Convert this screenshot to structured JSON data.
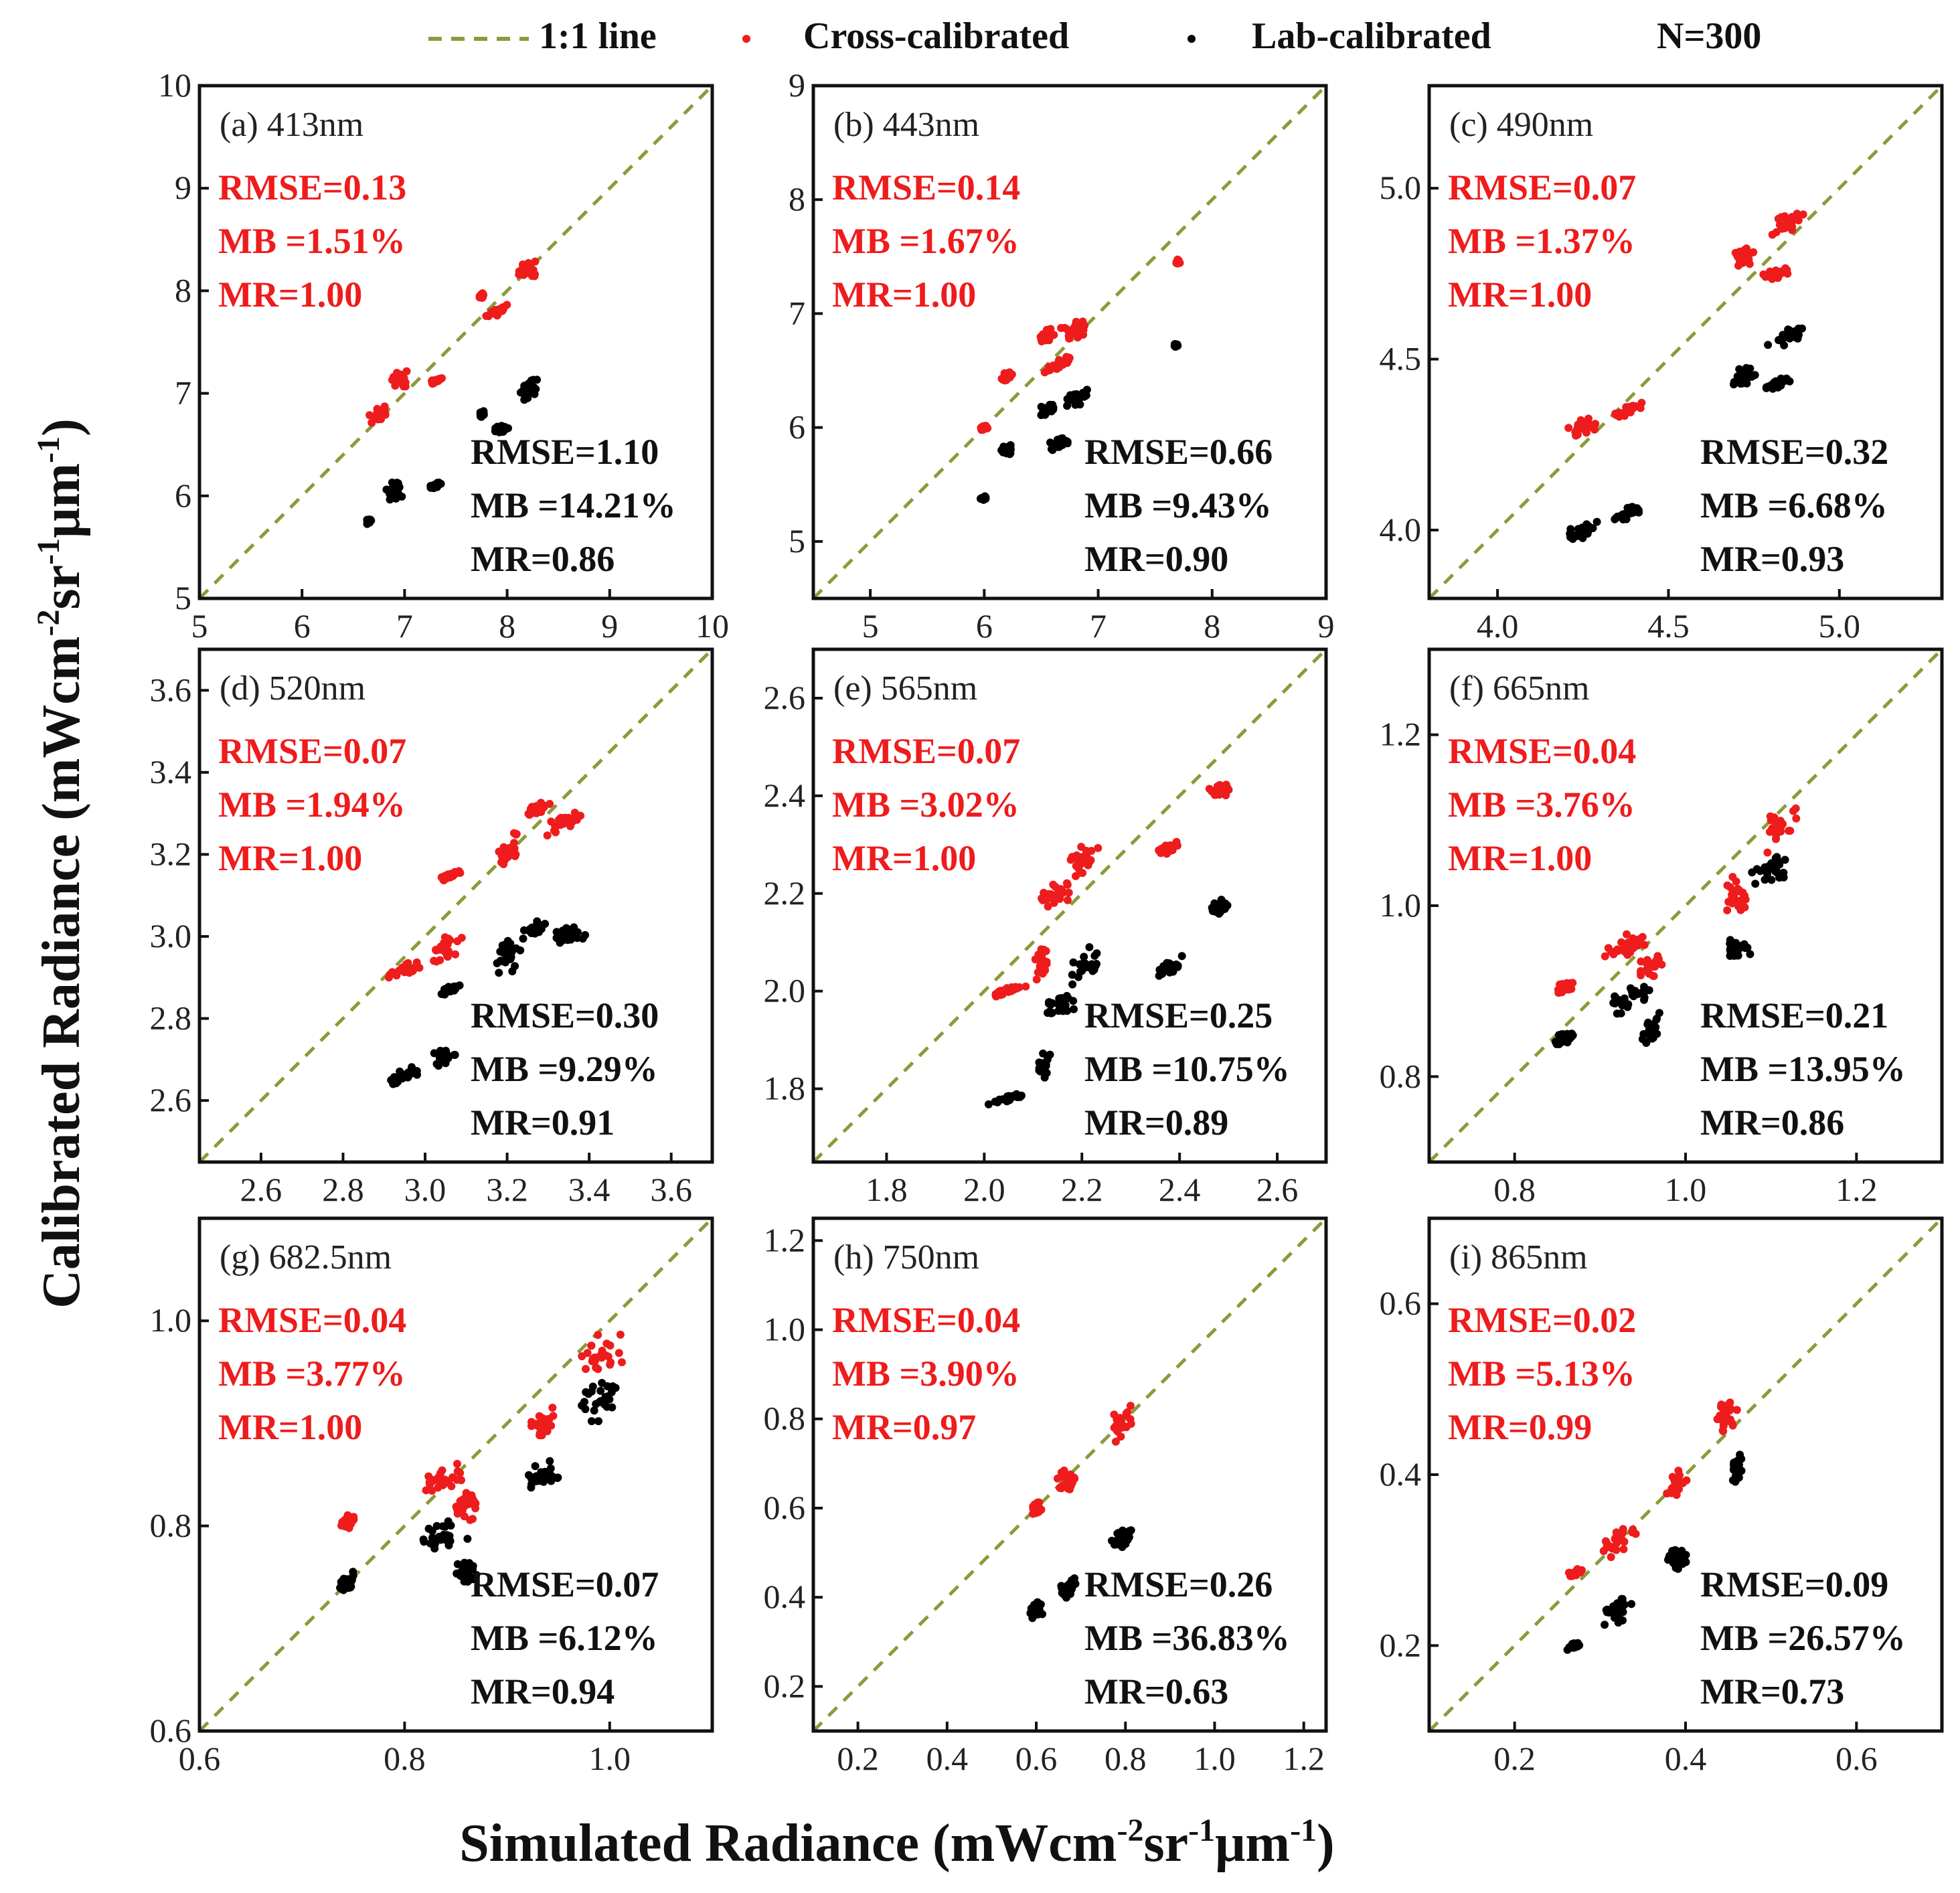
{
  "legend": {
    "line_label": "1:1 line",
    "cross_label": "Cross-calibrated",
    "lab_label": "Lab-calibrated",
    "n_label": "N=300"
  },
  "axis_titles": {
    "x_prefix": "Simulated Radiance (mWcm",
    "x_e1": "-2",
    "x_mid": "sr",
    "x_e2": "-1",
    "x_mu": "μm",
    "x_e3": "-1",
    "x_suffix": ")",
    "y_prefix": "Calibrated Radiance (mWcm",
    "y_e1": "-2",
    "y_mid": "sr",
    "y_e2": "-1",
    "y_mu": "μm",
    "y_e3": "-1",
    "y_suffix": ")"
  },
  "colors": {
    "cross": "#ee1c1c",
    "lab": "#000000",
    "line": "#8c9a3a",
    "frame": "#111111"
  },
  "chart_data": [
    {
      "type": "scatter",
      "title": "(a) 413nm",
      "xlim": [
        5,
        10
      ],
      "ylim": [
        5,
        10
      ],
      "xticks": [
        5,
        6,
        7,
        8,
        9,
        10
      ],
      "yticks": [
        5,
        6,
        7,
        8,
        9,
        10
      ],
      "xtick_labels": [
        "5",
        "6",
        "7",
        "8",
        "9",
        "10"
      ],
      "ytick_labels": [
        "5",
        "6",
        "7",
        "8",
        "9",
        "10"
      ],
      "cross_stats": [
        "RMSE=0.13",
        "MB =1.51%",
        "MR=1.00"
      ],
      "lab_stats": [
        "RMSE=1.10",
        "MB =14.21%",
        "MR=0.86"
      ],
      "cross_clusters": [
        [
          6.75,
          6.8,
          0.12,
          0.1
        ],
        [
          6.95,
          7.15,
          0.12,
          0.12
        ],
        [
          7.3,
          7.12,
          0.08,
          0.03
        ],
        [
          7.9,
          7.8,
          0.12,
          0.06
        ],
        [
          8.2,
          8.2,
          0.12,
          0.15
        ],
        [
          7.75,
          7.95,
          0.03,
          0.03
        ]
      ],
      "lab_clusters": [
        [
          6.65,
          5.75,
          0.05,
          0.03
        ],
        [
          6.9,
          6.05,
          0.12,
          0.12
        ],
        [
          7.3,
          6.1,
          0.06,
          0.03
        ],
        [
          7.95,
          6.65,
          0.1,
          0.05
        ],
        [
          8.2,
          7.05,
          0.12,
          0.12
        ],
        [
          7.75,
          6.8,
          0.03,
          0.03
        ]
      ]
    },
    {
      "type": "scatter",
      "title": "(b) 443nm",
      "xlim": [
        4.5,
        9
      ],
      "ylim": [
        4.5,
        9
      ],
      "xticks": [
        5,
        6,
        7,
        8,
        9
      ],
      "yticks": [
        5,
        6,
        7,
        8,
        9
      ],
      "xtick_labels": [
        "5",
        "6",
        "7",
        "8",
        "9"
      ],
      "ytick_labels": [
        "5",
        "6",
        "7",
        "8",
        "9"
      ],
      "cross_stats": [
        "RMSE=0.14",
        "MB =1.67%",
        "MR=1.00"
      ],
      "lab_stats": [
        "RMSE=0.66",
        "MB =9.43%",
        "MR=0.90"
      ],
      "cross_clusters": [
        [
          6.0,
          6.0,
          0.05,
          0.03
        ],
        [
          6.2,
          6.45,
          0.07,
          0.05
        ],
        [
          6.55,
          6.8,
          0.1,
          0.08
        ],
        [
          6.8,
          6.85,
          0.15,
          0.12
        ],
        [
          6.65,
          6.55,
          0.15,
          0.06
        ],
        [
          7.7,
          7.45,
          0.02,
          0.03
        ]
      ],
      "lab_clusters": [
        [
          6.0,
          5.38,
          0.04,
          0.02
        ],
        [
          6.2,
          5.8,
          0.06,
          0.05
        ],
        [
          6.55,
          6.15,
          0.1,
          0.08
        ],
        [
          6.8,
          6.25,
          0.15,
          0.1
        ],
        [
          6.65,
          5.85,
          0.15,
          0.06
        ],
        [
          7.68,
          6.72,
          0.02,
          0.02
        ]
      ]
    },
    {
      "type": "scatter",
      "title": "(c) 490nm",
      "xlim": [
        3.8,
        5.3
      ],
      "ylim": [
        3.8,
        5.3
      ],
      "xticks": [
        4.0,
        4.5,
        5.0
      ],
      "yticks": [
        4.0,
        4.5,
        5.0
      ],
      "xtick_labels": [
        "4.0",
        "4.5",
        "5.0"
      ],
      "ytick_labels": [
        "4.0",
        "4.5",
        "5.0"
      ],
      "cross_stats": [
        "RMSE=0.07",
        "MB =1.37%",
        "MR=1.00"
      ],
      "lab_stats": [
        "RMSE=0.32",
        "MB =6.68%",
        "MR=0.93"
      ],
      "cross_clusters": [
        [
          4.25,
          4.3,
          0.06,
          0.04
        ],
        [
          4.38,
          4.35,
          0.05,
          0.02
        ],
        [
          4.72,
          4.8,
          0.04,
          0.05
        ],
        [
          4.82,
          4.75,
          0.05,
          0.02
        ],
        [
          4.85,
          4.9,
          0.07,
          0.04
        ]
      ],
      "lab_clusters": [
        [
          4.25,
          4.0,
          0.06,
          0.03
        ],
        [
          4.38,
          4.05,
          0.05,
          0.02
        ],
        [
          4.72,
          4.45,
          0.04,
          0.04
        ],
        [
          4.82,
          4.43,
          0.05,
          0.02
        ],
        [
          4.85,
          4.57,
          0.07,
          0.03
        ]
      ]
    },
    {
      "type": "scatter",
      "title": "(d) 520nm",
      "xlim": [
        2.45,
        3.7
      ],
      "ylim": [
        2.45,
        3.7
      ],
      "xticks": [
        2.6,
        2.8,
        3.0,
        3.2,
        3.4,
        3.6
      ],
      "yticks": [
        2.6,
        2.8,
        3.0,
        3.2,
        3.4,
        3.6
      ],
      "xtick_labels": [
        "2.6",
        "2.8",
        "3.0",
        "3.2",
        "3.4",
        "3.6"
      ],
      "ytick_labels": [
        "2.6",
        "2.8",
        "3.0",
        "3.2",
        "3.4",
        "3.6"
      ],
      "cross_stats": [
        "RMSE=0.07",
        "MB =1.94%",
        "MR=1.00"
      ],
      "lab_stats": [
        "RMSE=0.30",
        "MB =9.29%",
        "MR=0.91"
      ],
      "cross_clusters": [
        [
          2.95,
          2.92,
          0.05,
          0.02
        ],
        [
          3.05,
          2.97,
          0.05,
          0.04
        ],
        [
          3.06,
          3.15,
          0.03,
          0.01
        ],
        [
          3.2,
          3.22,
          0.04,
          0.06
        ],
        [
          3.27,
          3.31,
          0.04,
          0.02
        ],
        [
          3.35,
          3.28,
          0.07,
          0.03
        ]
      ],
      "lab_clusters": [
        [
          2.95,
          2.66,
          0.05,
          0.02
        ],
        [
          3.05,
          2.71,
          0.04,
          0.03
        ],
        [
          3.06,
          2.87,
          0.03,
          0.01
        ],
        [
          3.2,
          2.95,
          0.04,
          0.06
        ],
        [
          3.27,
          3.02,
          0.04,
          0.02
        ],
        [
          3.35,
          3.0,
          0.07,
          0.03
        ]
      ]
    },
    {
      "type": "scatter",
      "title": "(e) 565nm",
      "xlim": [
        1.65,
        2.7
      ],
      "ylim": [
        1.65,
        2.7
      ],
      "xticks": [
        1.8,
        2.0,
        2.2,
        2.4,
        2.6
      ],
      "yticks": [
        1.8,
        2.0,
        2.2,
        2.4,
        2.6
      ],
      "xtick_labels": [
        "1.8",
        "2.0",
        "2.2",
        "2.4",
        "2.6"
      ],
      "ytick_labels": [
        "1.8",
        "2.0",
        "2.2",
        "2.4",
        "2.6"
      ],
      "cross_stats": [
        "RMSE=0.07",
        "MB =3.02%",
        "MR=1.00"
      ],
      "lab_stats": [
        "RMSE=0.25",
        "MB =10.75%",
        "MR=0.89"
      ],
      "cross_clusters": [
        [
          2.05,
          2.0,
          0.05,
          0.01
        ],
        [
          2.12,
          2.06,
          0.02,
          0.04
        ],
        [
          2.15,
          2.2,
          0.05,
          0.03
        ],
        [
          2.2,
          2.27,
          0.04,
          0.04
        ],
        [
          2.38,
          2.29,
          0.03,
          0.02
        ],
        [
          2.48,
          2.41,
          0.03,
          0.02
        ]
      ],
      "lab_clusters": [
        [
          2.05,
          1.78,
          0.05,
          0.01
        ],
        [
          2.12,
          1.84,
          0.02,
          0.04
        ],
        [
          2.15,
          1.97,
          0.05,
          0.03
        ],
        [
          2.2,
          2.05,
          0.04,
          0.04
        ],
        [
          2.38,
          2.05,
          0.03,
          0.02
        ],
        [
          2.48,
          2.17,
          0.03,
          0.02
        ]
      ]
    },
    {
      "type": "scatter",
      "title": "(f) 665nm",
      "xlim": [
        0.7,
        1.3
      ],
      "ylim": [
        0.7,
        1.3
      ],
      "xticks": [
        0.8,
        1.0,
        1.2
      ],
      "yticks": [
        0.8,
        1.0,
        1.2
      ],
      "xtick_labels": [
        "0.8",
        "1.0",
        "1.2"
      ],
      "ytick_labels": [
        "0.8",
        "1.0",
        "1.2"
      ],
      "cross_stats": [
        "RMSE=0.04",
        "MB =3.76%",
        "MR=1.00"
      ],
      "lab_stats": [
        "RMSE=0.21",
        "MB =13.95%",
        "MR=0.86"
      ],
      "cross_clusters": [
        [
          0.86,
          0.905,
          0.015,
          0.01
        ],
        [
          0.93,
          0.955,
          0.04,
          0.02
        ],
        [
          0.96,
          0.93,
          0.02,
          0.02
        ],
        [
          1.06,
          1.01,
          0.02,
          0.03
        ],
        [
          1.11,
          1.09,
          0.03,
          0.03
        ]
      ],
      "lab_clusters": [
        [
          0.86,
          0.845,
          0.015,
          0.01
        ],
        [
          0.93,
          0.89,
          0.04,
          0.02
        ],
        [
          0.96,
          0.855,
          0.015,
          0.02
        ],
        [
          1.06,
          0.95,
          0.02,
          0.02
        ],
        [
          1.1,
          1.04,
          0.03,
          0.03
        ]
      ]
    },
    {
      "type": "scatter",
      "title": "(g) 682.5nm",
      "xlim": [
        0.6,
        1.1
      ],
      "ylim": [
        0.6,
        1.1
      ],
      "xticks": [
        0.6,
        0.8,
        1.0
      ],
      "yticks": [
        0.6,
        0.8,
        1.0
      ],
      "xtick_labels": [
        "0.6",
        "0.8",
        "1.0"
      ],
      "ytick_labels": [
        "0.6",
        "0.8",
        "1.0"
      ],
      "cross_stats": [
        "RMSE=0.04",
        "MB =3.77%",
        "MR=1.00"
      ],
      "lab_stats": [
        "RMSE=0.07",
        "MB =6.12%",
        "MR=0.94"
      ],
      "cross_clusters": [
        [
          0.745,
          0.805,
          0.012,
          0.01
        ],
        [
          0.835,
          0.845,
          0.03,
          0.02
        ],
        [
          0.86,
          0.82,
          0.015,
          0.02
        ],
        [
          0.935,
          0.9,
          0.02,
          0.02
        ],
        [
          0.99,
          0.97,
          0.03,
          0.03
        ]
      ],
      "lab_clusters": [
        [
          0.745,
          0.745,
          0.012,
          0.01
        ],
        [
          0.835,
          0.79,
          0.03,
          0.02
        ],
        [
          0.86,
          0.755,
          0.015,
          0.02
        ],
        [
          0.935,
          0.85,
          0.02,
          0.02
        ],
        [
          0.99,
          0.925,
          0.03,
          0.03
        ]
      ]
    },
    {
      "type": "scatter",
      "title": "(h) 750nm",
      "xlim": [
        0.1,
        1.25
      ],
      "ylim": [
        0.1,
        1.25
      ],
      "xticks": [
        0.2,
        0.4,
        0.6,
        0.8,
        1.0,
        1.2
      ],
      "yticks": [
        0.2,
        0.4,
        0.6,
        0.8,
        1.0,
        1.2
      ],
      "xtick_labels": [
        "0.2",
        "0.4",
        "0.6",
        "0.8",
        "1.0",
        "1.2"
      ],
      "ytick_labels": [
        "0.2",
        "0.4",
        "0.6",
        "0.8",
        "1.0",
        "1.2"
      ],
      "cross_stats": [
        "RMSE=0.04",
        "MB =3.90%",
        "MR=0.97"
      ],
      "lab_stats": [
        "RMSE=0.26",
        "MB =36.83%",
        "MR=0.63"
      ],
      "cross_clusters": [
        [
          0.6,
          0.6,
          0.015,
          0.02
        ],
        [
          0.67,
          0.66,
          0.03,
          0.04
        ],
        [
          0.79,
          0.79,
          0.03,
          0.04
        ]
      ],
      "lab_clusters": [
        [
          0.6,
          0.37,
          0.015,
          0.02
        ],
        [
          0.67,
          0.42,
          0.03,
          0.03
        ],
        [
          0.79,
          0.53,
          0.03,
          0.03
        ]
      ]
    },
    {
      "type": "scatter",
      "title": "(i) 865nm",
      "xlim": [
        0.1,
        0.7
      ],
      "ylim": [
        0.1,
        0.7
      ],
      "xticks": [
        0.2,
        0.4,
        0.6
      ],
      "yticks": [
        0.2,
        0.4,
        0.6
      ],
      "xtick_labels": [
        "0.2",
        "0.4",
        "0.6"
      ],
      "ytick_labels": [
        "0.2",
        "0.4",
        "0.6"
      ],
      "cross_stats": [
        "RMSE=0.02",
        "MB =5.13%",
        "MR=0.99"
      ],
      "lab_stats": [
        "RMSE=0.09",
        "MB =26.57%",
        "MR=0.73"
      ],
      "cross_clusters": [
        [
          0.27,
          0.285,
          0.01,
          0.005
        ],
        [
          0.32,
          0.32,
          0.025,
          0.02
        ],
        [
          0.39,
          0.39,
          0.015,
          0.025
        ],
        [
          0.45,
          0.47,
          0.015,
          0.03
        ]
      ],
      "lab_clusters": [
        [
          0.27,
          0.2,
          0.01,
          0.005
        ],
        [
          0.32,
          0.24,
          0.025,
          0.02
        ],
        [
          0.39,
          0.3,
          0.015,
          0.02
        ],
        [
          0.46,
          0.41,
          0.01,
          0.03
        ]
      ]
    }
  ]
}
